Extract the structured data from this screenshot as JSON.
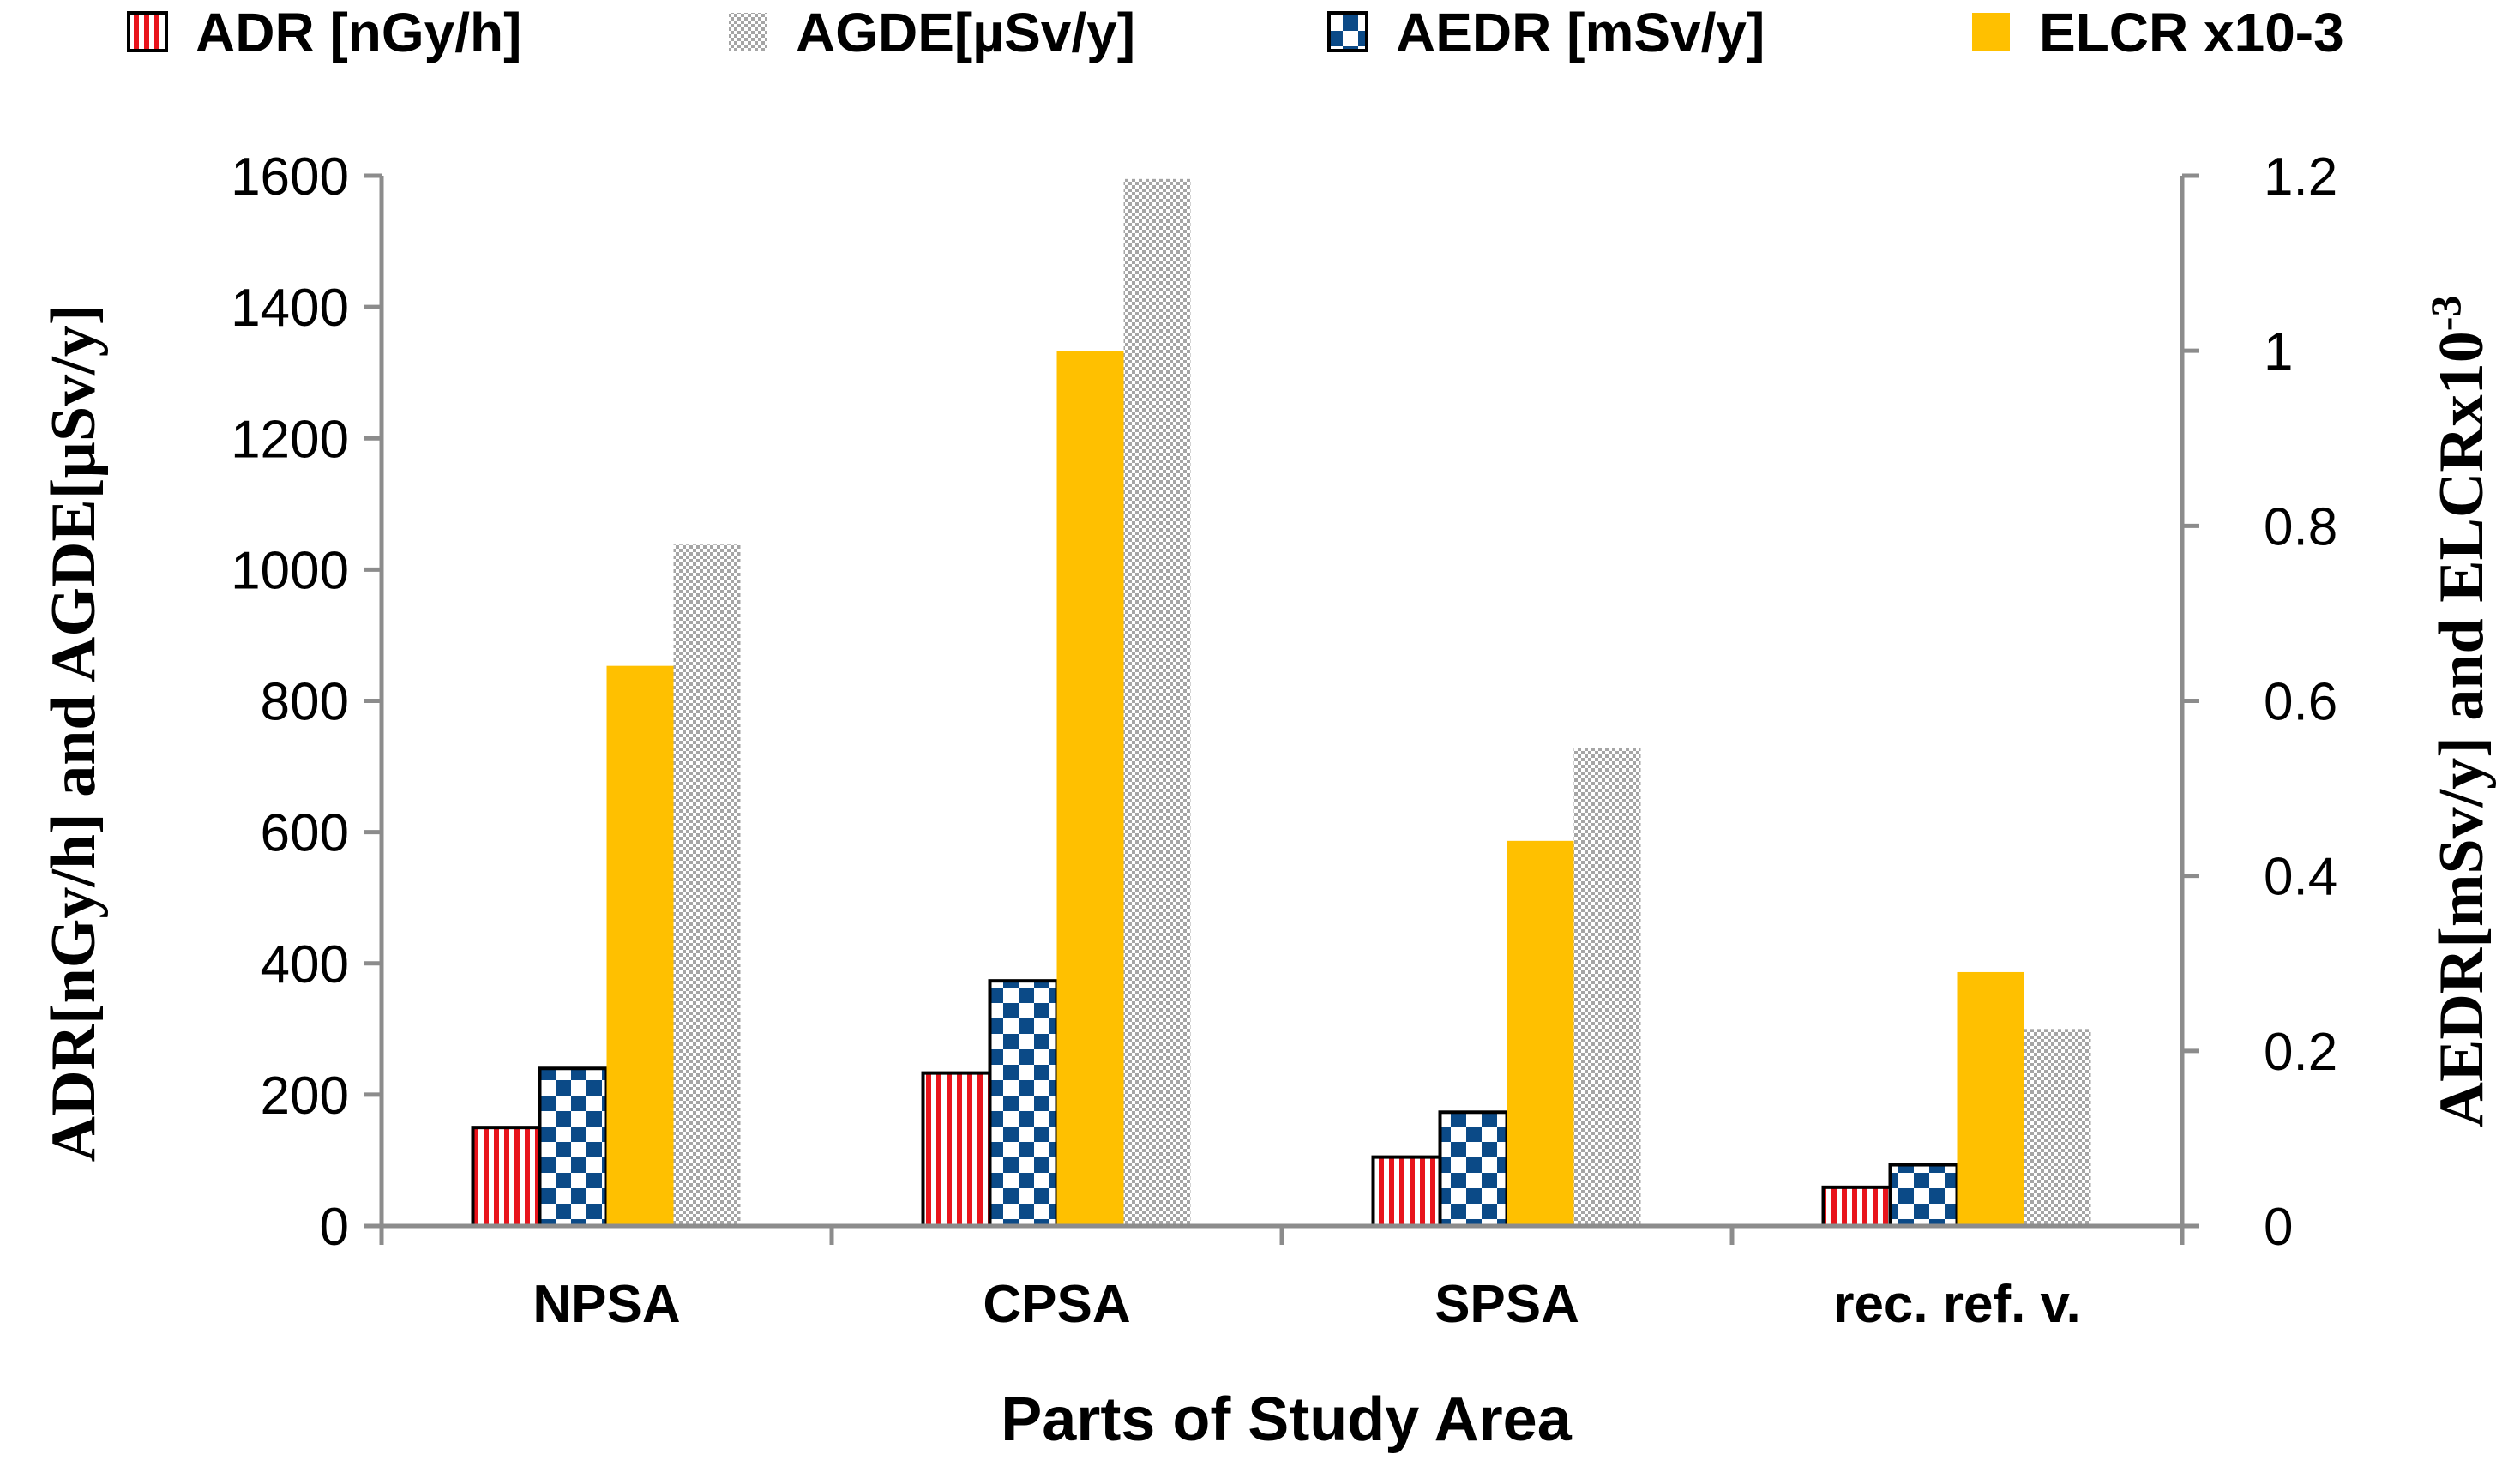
{
  "chart_data": {
    "type": "bar",
    "categories": [
      "NPSA",
      "CPSA",
      "SPSA",
      "rec. ref. v."
    ],
    "series": [
      {
        "name": "ADR [nGy/h]",
        "axis": "left",
        "pattern": "vstripes",
        "values": [
          150,
          233,
          105,
          59
        ]
      },
      {
        "name": "AEDR [mSv/y]",
        "axis": "right",
        "pattern": "checker",
        "values": [
          0.18,
          0.28,
          0.13,
          0.07
        ]
      },
      {
        "name": "ELCR x10-3",
        "axis": "right",
        "pattern": "solid",
        "values": [
          0.64,
          1.0,
          0.44,
          0.29
        ]
      },
      {
        "name": "AGDE[µSv/y]",
        "axis": "left",
        "pattern": "dots",
        "values": [
          1038,
          1595,
          728,
          300
        ]
      }
    ],
    "legend_order": [
      0,
      3,
      1,
      2
    ],
    "legend_position": "top",
    "xlabel": "Parts of Study Area",
    "ylabel_left": "ADR[nGy/h] and AGDE[µSv/y]",
    "ylabel_right_main": "AEDR[mSv/y] and ELCRx10",
    "ylabel_right_sup": "-3",
    "ylim_left": [
      0,
      1600
    ],
    "ylim_right": [
      0,
      1.2
    ],
    "yticks_left": [
      "0",
      "200",
      "400",
      "600",
      "800",
      "1000",
      "1200",
      "1400",
      "1600"
    ],
    "yticks_right": [
      "0",
      "0.2",
      "0.4",
      "0.6",
      "0.8",
      "1",
      "1.2"
    ],
    "grid": false
  },
  "colors": {
    "adr_stripe": "#e8141c",
    "aedr_blue": "#0b4a87",
    "elcr_orange": "#ffc000",
    "agde_dots": "#9a9a9a",
    "axis": "#8c8c8c"
  }
}
